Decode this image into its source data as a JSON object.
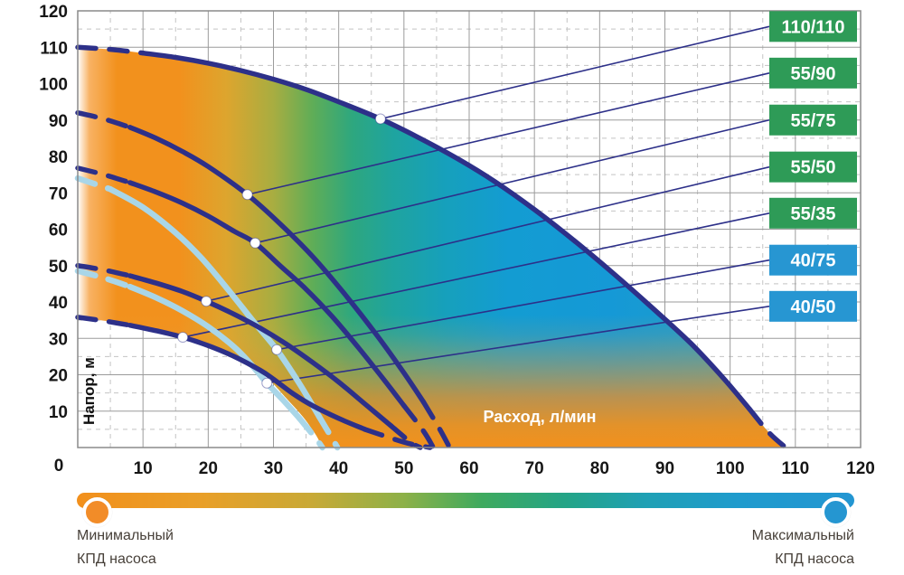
{
  "chart_data": {
    "type": "line",
    "title": "",
    "xlabel": "Расход, л/мин",
    "ylabel": "Напор, м",
    "xlim": [
      0,
      120
    ],
    "ylim": [
      0,
      120
    ],
    "x_ticks": [
      0,
      10,
      20,
      30,
      40,
      50,
      60,
      70,
      80,
      90,
      100,
      110,
      120
    ],
    "y_ticks": [
      0,
      10,
      20,
      30,
      40,
      50,
      60,
      70,
      80,
      90,
      100,
      110,
      120
    ],
    "grid": {
      "major_step": 10,
      "minor_step": 5,
      "minor_dashed": true
    },
    "series": [
      {
        "label": "110/110",
        "curve_color": "navy",
        "badge_color": "green",
        "dash_until": 10,
        "dash_from": 103,
        "marker": [
          46.4,
          90.3
        ],
        "label_y": 115.7,
        "points": [
          [
            0,
            110
          ],
          [
            5,
            109.4
          ],
          [
            10,
            108.4
          ],
          [
            15,
            107.2
          ],
          [
            20,
            105.6
          ],
          [
            25,
            103.6
          ],
          [
            30,
            101.2
          ],
          [
            35,
            98.4
          ],
          [
            40,
            95
          ],
          [
            46.4,
            90.3
          ],
          [
            52,
            85.4
          ],
          [
            58,
            79.6
          ],
          [
            64,
            73
          ],
          [
            70,
            65.4
          ],
          [
            76,
            57
          ],
          [
            82,
            48
          ],
          [
            88,
            38.5
          ],
          [
            94,
            28.6
          ],
          [
            99,
            19
          ],
          [
            103,
            10.5
          ],
          [
            106,
            4
          ],
          [
            108.5,
            0
          ]
        ]
      },
      {
        "label": "55/90",
        "curve_color": "navy",
        "badge_color": "green",
        "dash_until": 8,
        "dash_from": 52,
        "marker": [
          26,
          69.5
        ],
        "label_y": 102.9,
        "points": [
          [
            0,
            92
          ],
          [
            4,
            90.3
          ],
          [
            8,
            88
          ],
          [
            12,
            85
          ],
          [
            16,
            81.4
          ],
          [
            20,
            77.2
          ],
          [
            26,
            69.5
          ],
          [
            31,
            61.5
          ],
          [
            36,
            52.5
          ],
          [
            41,
            42
          ],
          [
            46,
            30.5
          ],
          [
            50,
            20.5
          ],
          [
            53,
            12.5
          ],
          [
            55.5,
            5
          ],
          [
            57,
            0
          ]
        ]
      },
      {
        "label": "55/75",
        "curve_color": "navy",
        "badge_color": "green",
        "dash_until": 8,
        "dash_from": 50,
        "marker": [
          27.2,
          56.2
        ],
        "label_y": 90.0,
        "points": [
          [
            0,
            76.8
          ],
          [
            4,
            75
          ],
          [
            8,
            72.8
          ],
          [
            12,
            70.2
          ],
          [
            16,
            67.2
          ],
          [
            20,
            63.6
          ],
          [
            24,
            59.4
          ],
          [
            27.2,
            56.2
          ],
          [
            31,
            50
          ],
          [
            35,
            43.5
          ],
          [
            39,
            36
          ],
          [
            43,
            27.5
          ],
          [
            47,
            18.5
          ],
          [
            50,
            11.5
          ],
          [
            53,
            4.5
          ],
          [
            54.5,
            0
          ]
        ]
      },
      {
        "label": "55/50",
        "curve_color": "navy",
        "badge_color": "green",
        "dash_until": 7,
        "dash_from": 48,
        "marker": [
          19.7,
          40.2
        ],
        "label_y": 77.1,
        "points": [
          [
            0,
            50
          ],
          [
            4,
            48.8
          ],
          [
            8,
            47.2
          ],
          [
            12,
            45.2
          ],
          [
            16,
            42.9
          ],
          [
            19.7,
            40.2
          ],
          [
            24,
            36.6
          ],
          [
            28,
            32.8
          ],
          [
            32,
            28.4
          ],
          [
            36,
            23.4
          ],
          [
            40,
            18
          ],
          [
            44,
            12
          ],
          [
            48,
            6
          ],
          [
            51,
            1.5
          ],
          [
            52.5,
            0
          ]
        ]
      },
      {
        "label": "55/35",
        "curve_color": "navy",
        "badge_color": "green",
        "dash_until": 6,
        "dash_from": 44,
        "marker": [
          16.1,
          30.3
        ],
        "label_y": 64.4,
        "points": [
          [
            0,
            35.8
          ],
          [
            4,
            34.8
          ],
          [
            8,
            33.6
          ],
          [
            12,
            32.1
          ],
          [
            16.1,
            30.3
          ],
          [
            20,
            28
          ],
          [
            24,
            25
          ],
          [
            28,
            21.2
          ],
          [
            30,
            18.8
          ],
          [
            33,
            14.8
          ],
          [
            36,
            11.5
          ],
          [
            40,
            8
          ],
          [
            44,
            5
          ],
          [
            48,
            2.6
          ],
          [
            51,
            1
          ],
          [
            54,
            0
          ]
        ]
      },
      {
        "label": "40/75",
        "curve_color": "lightblue",
        "badge_color": "blue",
        "dash_until": 5,
        "dash_from": 37,
        "marker": [
          30.5,
          26.9
        ],
        "label_y": 51.5,
        "points": [
          [
            0,
            74
          ],
          [
            5,
            71
          ],
          [
            10,
            66
          ],
          [
            15,
            59
          ],
          [
            19,
            52
          ],
          [
            23,
            43.5
          ],
          [
            27,
            34.5
          ],
          [
            30.5,
            26.9
          ],
          [
            34,
            17.5
          ],
          [
            37,
            8.5
          ],
          [
            39,
            2.5
          ],
          [
            39.8,
            0
          ]
        ]
      },
      {
        "label": "40/50",
        "curve_color": "lightblue",
        "badge_color": "blue",
        "dash_until": 5,
        "dash_from": 34,
        "marker": [
          29,
          17.7
        ],
        "label_y": 38.8,
        "points": [
          [
            0,
            48.5
          ],
          [
            4,
            46.6
          ],
          [
            8,
            44.2
          ],
          [
            12,
            41.2
          ],
          [
            16,
            37.6
          ],
          [
            20,
            33.2
          ],
          [
            24,
            27.6
          ],
          [
            26.5,
            23
          ],
          [
            29,
            17.7
          ],
          [
            31.5,
            13
          ],
          [
            34,
            8
          ],
          [
            36.5,
            2.5
          ],
          [
            37.5,
            0
          ]
        ]
      }
    ],
    "envelope_lower": [
      [
        0,
        35.8
      ],
      [
        6,
        34.3
      ],
      [
        12,
        32.1
      ],
      [
        16.1,
        30.3
      ],
      [
        20,
        28
      ],
      [
        24,
        25
      ],
      [
        28,
        21.2
      ],
      [
        30,
        17.5
      ],
      [
        32,
        13.5
      ],
      [
        34.5,
        8.5
      ],
      [
        36.5,
        3.5
      ],
      [
        37.5,
        0
      ]
    ],
    "legend": {
      "min_line1": "Минимальный",
      "min_line2": "КПД насоса",
      "max_line1": "Максимальный",
      "max_line2": "КПД насоса"
    }
  },
  "colors": {
    "navy": "#2d3089",
    "lightblue": "#a9d6e8",
    "badge_green": "#2E9B57",
    "badge_blue": "#2796D2",
    "grid_major": "#9b9b9b",
    "grid_minor": "#c4c4c4",
    "plot_border": "#8a8a8a",
    "marker_fill": "#ffffff",
    "efficiency_min": "#F2901C",
    "efficiency_max": "#2396D2"
  }
}
